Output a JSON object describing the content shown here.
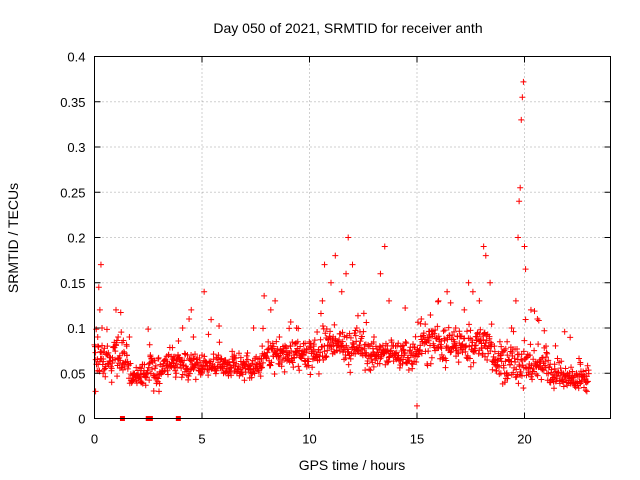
{
  "chart_data": {
    "type": "scatter",
    "title": "Day 050 of 2021, SRMTID for receiver anth",
    "xlabel": "GPS time / hours",
    "ylabel": "SRMTID / TECUs",
    "xlim": [
      0,
      24
    ],
    "ylim": [
      0,
      0.4
    ],
    "xticks": [
      "0",
      "5",
      "10",
      "15",
      "20"
    ],
    "yticks": [
      "0",
      "0.05",
      "0.1",
      "0.15",
      "0.2",
      "0.25",
      "0.3",
      "0.35",
      "0.4"
    ],
    "grid": true,
    "legend": "none",
    "marker_color": "#ff0000",
    "marker": "plus",
    "series": [
      {
        "name": "SRMTID",
        "values_description": "dense scatter of ~1300 points, baseline 0.03-0.10 TECU",
        "points": [
          [
            0.05,
            0.03
          ],
          [
            0.1,
            0.06
          ],
          [
            0.15,
            0.09
          ],
          [
            0.2,
            0.145
          ],
          [
            0.25,
            0.12
          ],
          [
            0.3,
            0.17
          ],
          [
            0.35,
            0.1
          ],
          [
            0.4,
            0.05
          ],
          [
            0.6,
            0.08
          ],
          [
            0.8,
            0.04
          ],
          [
            1.0,
            0.12
          ],
          [
            1.1,
            0.09
          ],
          [
            1.3,
            0.06
          ],
          [
            1.5,
            0.08
          ],
          [
            1.8,
            0.05
          ],
          [
            2.2,
            0.04
          ],
          [
            2.6,
            0.07
          ],
          [
            3.0,
            0.03
          ],
          [
            3.4,
            0.06
          ],
          [
            3.8,
            0.05
          ],
          [
            4.1,
            0.1
          ],
          [
            4.4,
            0.11
          ],
          [
            4.5,
            0.12
          ],
          [
            4.6,
            0.09
          ],
          [
            5.0,
            0.07
          ],
          [
            5.1,
            0.14
          ],
          [
            5.5,
            0.06
          ],
          [
            6.0,
            0.05
          ],
          [
            6.5,
            0.07
          ],
          [
            7.0,
            0.06
          ],
          [
            7.4,
            0.1
          ],
          [
            7.8,
            0.08
          ],
          [
            8.2,
            0.12
          ],
          [
            8.4,
            0.13
          ],
          [
            8.6,
            0.09
          ],
          [
            9.0,
            0.07
          ],
          [
            9.4,
            0.1
          ],
          [
            9.8,
            0.06
          ],
          [
            10.2,
            0.08
          ],
          [
            10.6,
            0.13
          ],
          [
            10.7,
            0.17
          ],
          [
            11.0,
            0.15
          ],
          [
            11.2,
            0.18
          ],
          [
            11.5,
            0.14
          ],
          [
            11.7,
            0.16
          ],
          [
            11.8,
            0.2
          ],
          [
            12.0,
            0.17
          ],
          [
            12.2,
            0.1
          ],
          [
            12.6,
            0.07
          ],
          [
            13.0,
            0.09
          ],
          [
            13.3,
            0.16
          ],
          [
            13.5,
            0.19
          ],
          [
            13.7,
            0.13
          ],
          [
            14.0,
            0.08
          ],
          [
            14.4,
            0.07
          ],
          [
            14.8,
            0.06
          ],
          [
            15.0,
            0.014
          ],
          [
            15.2,
            0.11
          ],
          [
            15.6,
            0.09
          ],
          [
            16.0,
            0.13
          ],
          [
            16.4,
            0.14
          ],
          [
            16.8,
            0.1
          ],
          [
            17.2,
            0.12
          ],
          [
            17.4,
            0.15
          ],
          [
            17.6,
            0.14
          ],
          [
            17.9,
            0.13
          ],
          [
            18.1,
            0.19
          ],
          [
            18.2,
            0.18
          ],
          [
            18.4,
            0.15
          ],
          [
            18.6,
            0.08
          ],
          [
            18.9,
            0.05
          ],
          [
            19.2,
            0.07
          ],
          [
            19.4,
            0.1
          ],
          [
            19.6,
            0.13
          ],
          [
            19.7,
            0.2
          ],
          [
            19.75,
            0.24
          ],
          [
            19.8,
            0.255
          ],
          [
            19.85,
            0.33
          ],
          [
            19.9,
            0.355
          ],
          [
            19.95,
            0.372
          ],
          [
            20.0,
            0.19
          ],
          [
            20.05,
            0.165
          ],
          [
            20.3,
            0.12
          ],
          [
            20.6,
            0.11
          ],
          [
            21.0,
            0.08
          ],
          [
            21.4,
            0.06
          ],
          [
            21.8,
            0.05
          ],
          [
            22.2,
            0.04
          ],
          [
            22.6,
            0.06
          ],
          [
            22.9,
            0.03
          ]
        ]
      },
      {
        "name": "zero-level markers",
        "marker": "square",
        "points": [
          [
            1.3,
            0.0
          ],
          [
            2.5,
            0.0
          ],
          [
            2.6,
            0.0
          ],
          [
            3.9,
            0.0
          ]
        ]
      }
    ]
  }
}
